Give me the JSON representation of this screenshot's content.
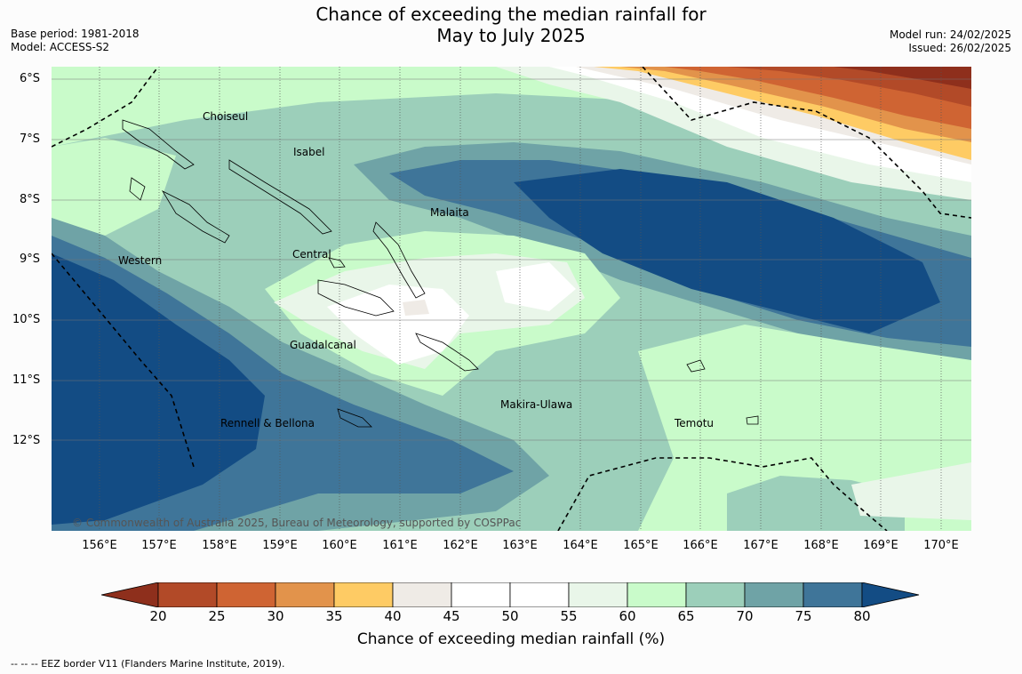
{
  "title_line1": "Chance of exceeding the median rainfall for",
  "title_line2": "May to July 2025",
  "meta_left": {
    "base_period": "Base period: 1981-2018",
    "model": "Model: ACCESS-S2"
  },
  "meta_right": {
    "model_run": "Model run: 24/02/2025",
    "issued": "Issued: 26/02/2025"
  },
  "lat_labels": [
    "6°S",
    "7°S",
    "8°S",
    "9°S",
    "10°S",
    "11°S",
    "12°S"
  ],
  "lon_labels": [
    "156°E",
    "157°E",
    "158°E",
    "159°E",
    "160°E",
    "161°E",
    "162°E",
    "163°E",
    "164°E",
    "165°E",
    "166°E",
    "167°E",
    "168°E",
    "169°E",
    "170°E"
  ],
  "regions": {
    "choiseul": "Choiseul",
    "isabel": "Isabel",
    "malaita": "Malaita",
    "central": "Central",
    "western": "Western",
    "guadalcanal": "Guadalcanal",
    "rennell": "Rennell & Bellona",
    "makira": "Makira-Ulawa",
    "temotu": "Temotu"
  },
  "copyright": "© Commonwealth of Australia 2025, Bureau of Meteorology, supported by COSPPac",
  "colorbar": {
    "ticks": [
      "20",
      "25",
      "30",
      "35",
      "40",
      "45",
      "50",
      "55",
      "60",
      "65",
      "70",
      "75",
      "80"
    ],
    "colors": [
      "#8e2f1c",
      "#b24a28",
      "#cf6433",
      "#e2934b",
      "#fecb64",
      "#efebe6",
      "#ffffff",
      "#ffffff",
      "#e9f6e9",
      "#c9fbca",
      "#9ccfba",
      "#6fa3a6",
      "#3f7599",
      "#134c84"
    ],
    "title": "Chance of exceeding median rainfall (%)"
  },
  "footer": "--  --  -- EEZ border V11 (Flanders Marine Institute, 2019)."
}
